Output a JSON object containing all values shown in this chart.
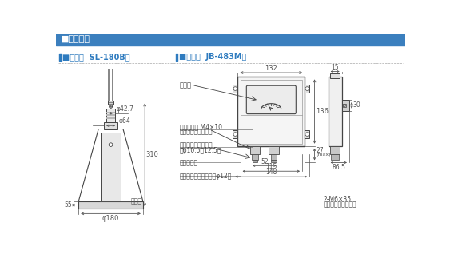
{
  "title_bar_text": "■機器構成",
  "title_bar_bg": "#3b7fbe",
  "title_bar_text_color": "#ffffff",
  "bg_color": "#ffffff",
  "line_color": "#444444",
  "blue_text_color": "#2e7bbf",
  "section1_title": "■検出器  SL-180B型",
  "section2_title": "■中継箱  JB-483M型",
  "dim_color": "#555555",
  "gray_line": "#aaaaaa"
}
